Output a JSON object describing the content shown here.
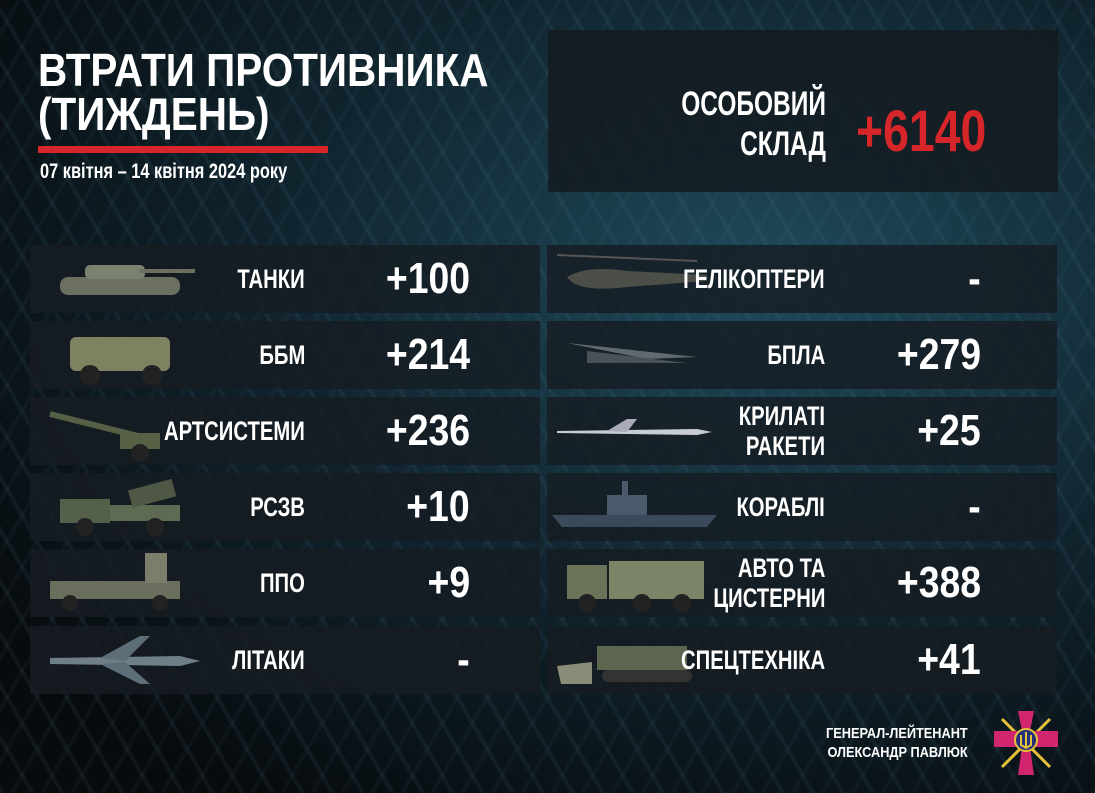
{
  "header": {
    "title_line1": "ВТРАТИ ПРОТИВНИКА",
    "title_line2": "(ТИЖДЕНЬ)",
    "date_range": "07 квітня – 14 квітня 2024 року"
  },
  "personnel": {
    "label_line1": "ОСОБОВИЙ",
    "label_line2": "СКЛАД",
    "value": "+6140",
    "value_color": "#d7262a"
  },
  "left": [
    {
      "label": "ТАНКИ",
      "value": "+100",
      "icon": "tank-icon"
    },
    {
      "label": "ББМ",
      "value": "+214",
      "icon": "armored-vehicle-icon"
    },
    {
      "label": "АРТСИСТЕМИ",
      "value": "+236",
      "icon": "artillery-icon"
    },
    {
      "label": "РСЗВ",
      "value": "+10",
      "icon": "mlrs-icon"
    },
    {
      "label": "ППО",
      "value": "+9",
      "icon": "air-defense-icon"
    },
    {
      "label": "ЛІТАКИ",
      "value": "-",
      "icon": "aircraft-icon"
    }
  ],
  "right": [
    {
      "label": "ГЕЛІКОПТЕРИ",
      "value": "-",
      "icon": "helicopter-icon"
    },
    {
      "label": "БПЛА",
      "value": "+279",
      "icon": "drone-icon"
    },
    {
      "label": "КРИЛАТІ\nРАКЕТИ",
      "value": "+25",
      "icon": "cruise-missile-icon"
    },
    {
      "label": "КОРАБЛІ",
      "value": "-",
      "icon": "ship-icon"
    },
    {
      "label": "АВТО ТА\nЦИСТЕРНИ",
      "value": "+388",
      "icon": "truck-icon"
    },
    {
      "label": "СПЕЦТЕХНІКА",
      "value": "+41",
      "icon": "engineering-vehicle-icon"
    }
  ],
  "signature": {
    "line1": "ГЕНЕРАЛ-ЛЕЙТЕНАНТ",
    "line2": "ОЛЕКСАНДР ПАВЛЮК"
  },
  "colors": {
    "accent": "#d7262a",
    "emblem": "#d1266f",
    "emblem_gold": "#e4c23a"
  }
}
